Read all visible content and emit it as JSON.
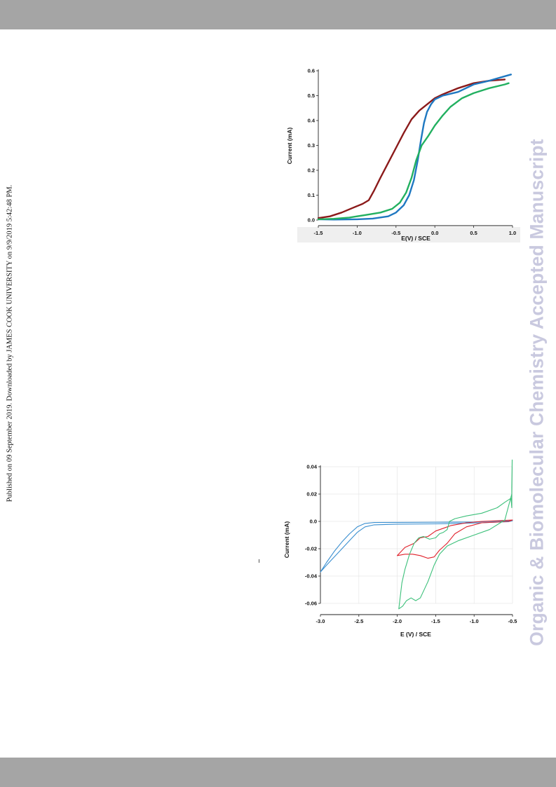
{
  "side_note": "Published on 09 September 2019. Downloaded by JAMES COOK UNIVERSITY on 9/9/2019 5:42:48 PM.",
  "watermark": "Organic & Biomolecular Chemistry Accepted Manuscript",
  "colors": {
    "band": "#a5a5a5",
    "watermark": "#c9c9df",
    "dark_red": "#8b1a1a",
    "blue": "#1f78c1",
    "green": "#22b060",
    "red": "#e0202a",
    "light_blue": "#3a8fd0",
    "light_green": "#3cc07a"
  },
  "chart_data": [
    {
      "type": "line",
      "xlabel": "E(V) / SCE",
      "ylabel": "Current (mA)",
      "xlim": [
        -1.5,
        1.0
      ],
      "ylim": [
        0.0,
        0.6
      ],
      "x_ticks": [
        "-1.5",
        "-1.0",
        "-0.5",
        "0.0",
        "0.5",
        "1.0"
      ],
      "y_ticks": [
        "0.0",
        "0.1",
        "0.2",
        "0.3",
        "0.4",
        "0.5",
        "0.6"
      ],
      "grid": false,
      "series": [
        {
          "color": "#8b1a1a",
          "points": [
            [
              -1.5,
              0.008
            ],
            [
              -1.35,
              0.015
            ],
            [
              -1.2,
              0.03
            ],
            [
              -1.05,
              0.05
            ],
            [
              -0.93,
              0.065
            ],
            [
              -0.85,
              0.08
            ],
            [
              -0.78,
              0.12
            ],
            [
              -0.7,
              0.17
            ],
            [
              -0.6,
              0.23
            ],
            [
              -0.5,
              0.29
            ],
            [
              -0.4,
              0.35
            ],
            [
              -0.3,
              0.405
            ],
            [
              -0.2,
              0.44
            ],
            [
              -0.1,
              0.465
            ],
            [
              0.0,
              0.49
            ],
            [
              0.1,
              0.505
            ],
            [
              0.3,
              0.53
            ],
            [
              0.5,
              0.55
            ],
            [
              0.7,
              0.56
            ],
            [
              0.9,
              0.565
            ]
          ]
        },
        {
          "color": "#1f78c1",
          "points": [
            [
              -1.5,
              0.003
            ],
            [
              -1.3,
              0.002
            ],
            [
              -1.0,
              0.003
            ],
            [
              -0.8,
              0.006
            ],
            [
              -0.6,
              0.015
            ],
            [
              -0.5,
              0.03
            ],
            [
              -0.4,
              0.06
            ],
            [
              -0.33,
              0.1
            ],
            [
              -0.27,
              0.16
            ],
            [
              -0.22,
              0.24
            ],
            [
              -0.18,
              0.32
            ],
            [
              -0.14,
              0.39
            ],
            [
              -0.1,
              0.435
            ],
            [
              -0.05,
              0.465
            ],
            [
              0.0,
              0.485
            ],
            [
              0.1,
              0.5
            ],
            [
              0.3,
              0.515
            ],
            [
              0.5,
              0.545
            ],
            [
              0.7,
              0.56
            ],
            [
              0.9,
              0.578
            ],
            [
              0.98,
              0.585
            ]
          ]
        },
        {
          "color": "#22b060",
          "points": [
            [
              -1.5,
              0.003
            ],
            [
              -1.3,
              0.005
            ],
            [
              -1.1,
              0.01
            ],
            [
              -0.9,
              0.02
            ],
            [
              -0.7,
              0.03
            ],
            [
              -0.55,
              0.045
            ],
            [
              -0.45,
              0.07
            ],
            [
              -0.37,
              0.11
            ],
            [
              -0.3,
              0.17
            ],
            [
              -0.24,
              0.24
            ],
            [
              -0.17,
              0.3
            ],
            [
              -0.08,
              0.34
            ],
            [
              0.0,
              0.38
            ],
            [
              0.1,
              0.42
            ],
            [
              0.2,
              0.455
            ],
            [
              0.35,
              0.49
            ],
            [
              0.5,
              0.51
            ],
            [
              0.7,
              0.53
            ],
            [
              0.9,
              0.545
            ],
            [
              0.95,
              0.55
            ]
          ]
        }
      ]
    },
    {
      "type": "line",
      "xlabel": "E (V) / SCE",
      "ylabel": "Current (mA)",
      "xlim": [
        -3.0,
        -0.5
      ],
      "ylim": [
        -0.06,
        0.04
      ],
      "x_ticks": [
        "-3.0",
        "-2.5",
        "-2.0",
        "-1.5",
        "-1.0",
        "-0.5"
      ],
      "y_ticks": [
        "0.04",
        "0.02",
        "0.0",
        "-0.02",
        "-0.04",
        "-0.06"
      ],
      "grid": true,
      "series": [
        {
          "color": "#3a8fd0",
          "points": [
            [
              -3.0,
              -0.037
            ],
            [
              -2.92,
              -0.03
            ],
            [
              -2.82,
              -0.022
            ],
            [
              -2.72,
              -0.015
            ],
            [
              -2.62,
              -0.009
            ],
            [
              -2.52,
              -0.004
            ],
            [
              -2.42,
              -0.0015
            ],
            [
              -2.3,
              -0.0008
            ],
            [
              -2.0,
              -0.0007
            ],
            [
              -1.5,
              -0.0006
            ],
            [
              -1.0,
              -0.0004
            ],
            [
              -0.5,
              0.0005
            ],
            [
              -0.55,
              -0.0002
            ],
            [
              -1.0,
              -0.0012
            ],
            [
              -1.5,
              -0.0018
            ],
            [
              -2.0,
              -0.002
            ],
            [
              -2.3,
              -0.0025
            ],
            [
              -2.42,
              -0.004
            ],
            [
              -2.52,
              -0.008
            ],
            [
              -2.62,
              -0.014
            ],
            [
              -2.72,
              -0.02
            ],
            [
              -2.82,
              -0.026
            ],
            [
              -2.92,
              -0.032
            ],
            [
              -3.0,
              -0.037
            ]
          ]
        },
        {
          "color": "#e0202a",
          "points": [
            [
              -2.0,
              -0.025
            ],
            [
              -1.9,
              -0.019
            ],
            [
              -1.78,
              -0.016
            ],
            [
              -1.7,
              -0.012
            ],
            [
              -1.6,
              -0.011
            ],
            [
              -1.5,
              -0.007
            ],
            [
              -1.4,
              -0.005
            ],
            [
              -1.3,
              -0.003
            ],
            [
              -1.1,
              -0.001
            ],
            [
              -0.9,
              0.0
            ],
            [
              -0.7,
              0.0005
            ],
            [
              -0.5,
              0.001
            ],
            [
              -0.55,
              0.0
            ],
            [
              -0.7,
              -0.0005
            ],
            [
              -0.9,
              -0.001
            ],
            [
              -1.1,
              -0.004
            ],
            [
              -1.25,
              -0.009
            ],
            [
              -1.35,
              -0.016
            ],
            [
              -1.45,
              -0.021
            ],
            [
              -1.52,
              -0.026
            ],
            [
              -1.6,
              -0.027
            ],
            [
              -1.7,
              -0.025
            ],
            [
              -1.8,
              -0.024
            ],
            [
              -1.9,
              -0.024
            ],
            [
              -2.0,
              -0.025
            ]
          ]
        },
        {
          "color": "#3cc07a",
          "points": [
            [
              -1.98,
              -0.064
            ],
            [
              -1.94,
              -0.045
            ],
            [
              -1.9,
              -0.035
            ],
            [
              -1.84,
              -0.024
            ],
            [
              -1.78,
              -0.016
            ],
            [
              -1.72,
              -0.012
            ],
            [
              -1.66,
              -0.011
            ],
            [
              -1.58,
              -0.013
            ],
            [
              -1.5,
              -0.012
            ],
            [
              -1.45,
              -0.009
            ],
            [
              -1.4,
              -0.008
            ],
            [
              -1.35,
              -0.006
            ],
            [
              -1.32,
              0.0
            ],
            [
              -1.25,
              0.002
            ],
            [
              -1.1,
              0.004
            ],
            [
              -0.9,
              0.006
            ],
            [
              -0.7,
              0.01
            ],
            [
              -0.6,
              0.014
            ],
            [
              -0.52,
              0.017
            ],
            [
              -0.51,
              0.01
            ],
            [
              -0.51,
              0.025
            ],
            [
              -0.505,
              0.045
            ],
            [
              -0.51,
              0.02
            ],
            [
              -0.6,
              0.001
            ],
            [
              -0.8,
              -0.006
            ],
            [
              -1.0,
              -0.01
            ],
            [
              -1.2,
              -0.014
            ],
            [
              -1.35,
              -0.018
            ],
            [
              -1.45,
              -0.024
            ],
            [
              -1.52,
              -0.032
            ],
            [
              -1.6,
              -0.044
            ],
            [
              -1.7,
              -0.056
            ],
            [
              -1.76,
              -0.058
            ],
            [
              -1.82,
              -0.056
            ],
            [
              -1.88,
              -0.058
            ],
            [
              -1.93,
              -0.062
            ],
            [
              -1.98,
              -0.064
            ]
          ]
        }
      ]
    }
  ]
}
